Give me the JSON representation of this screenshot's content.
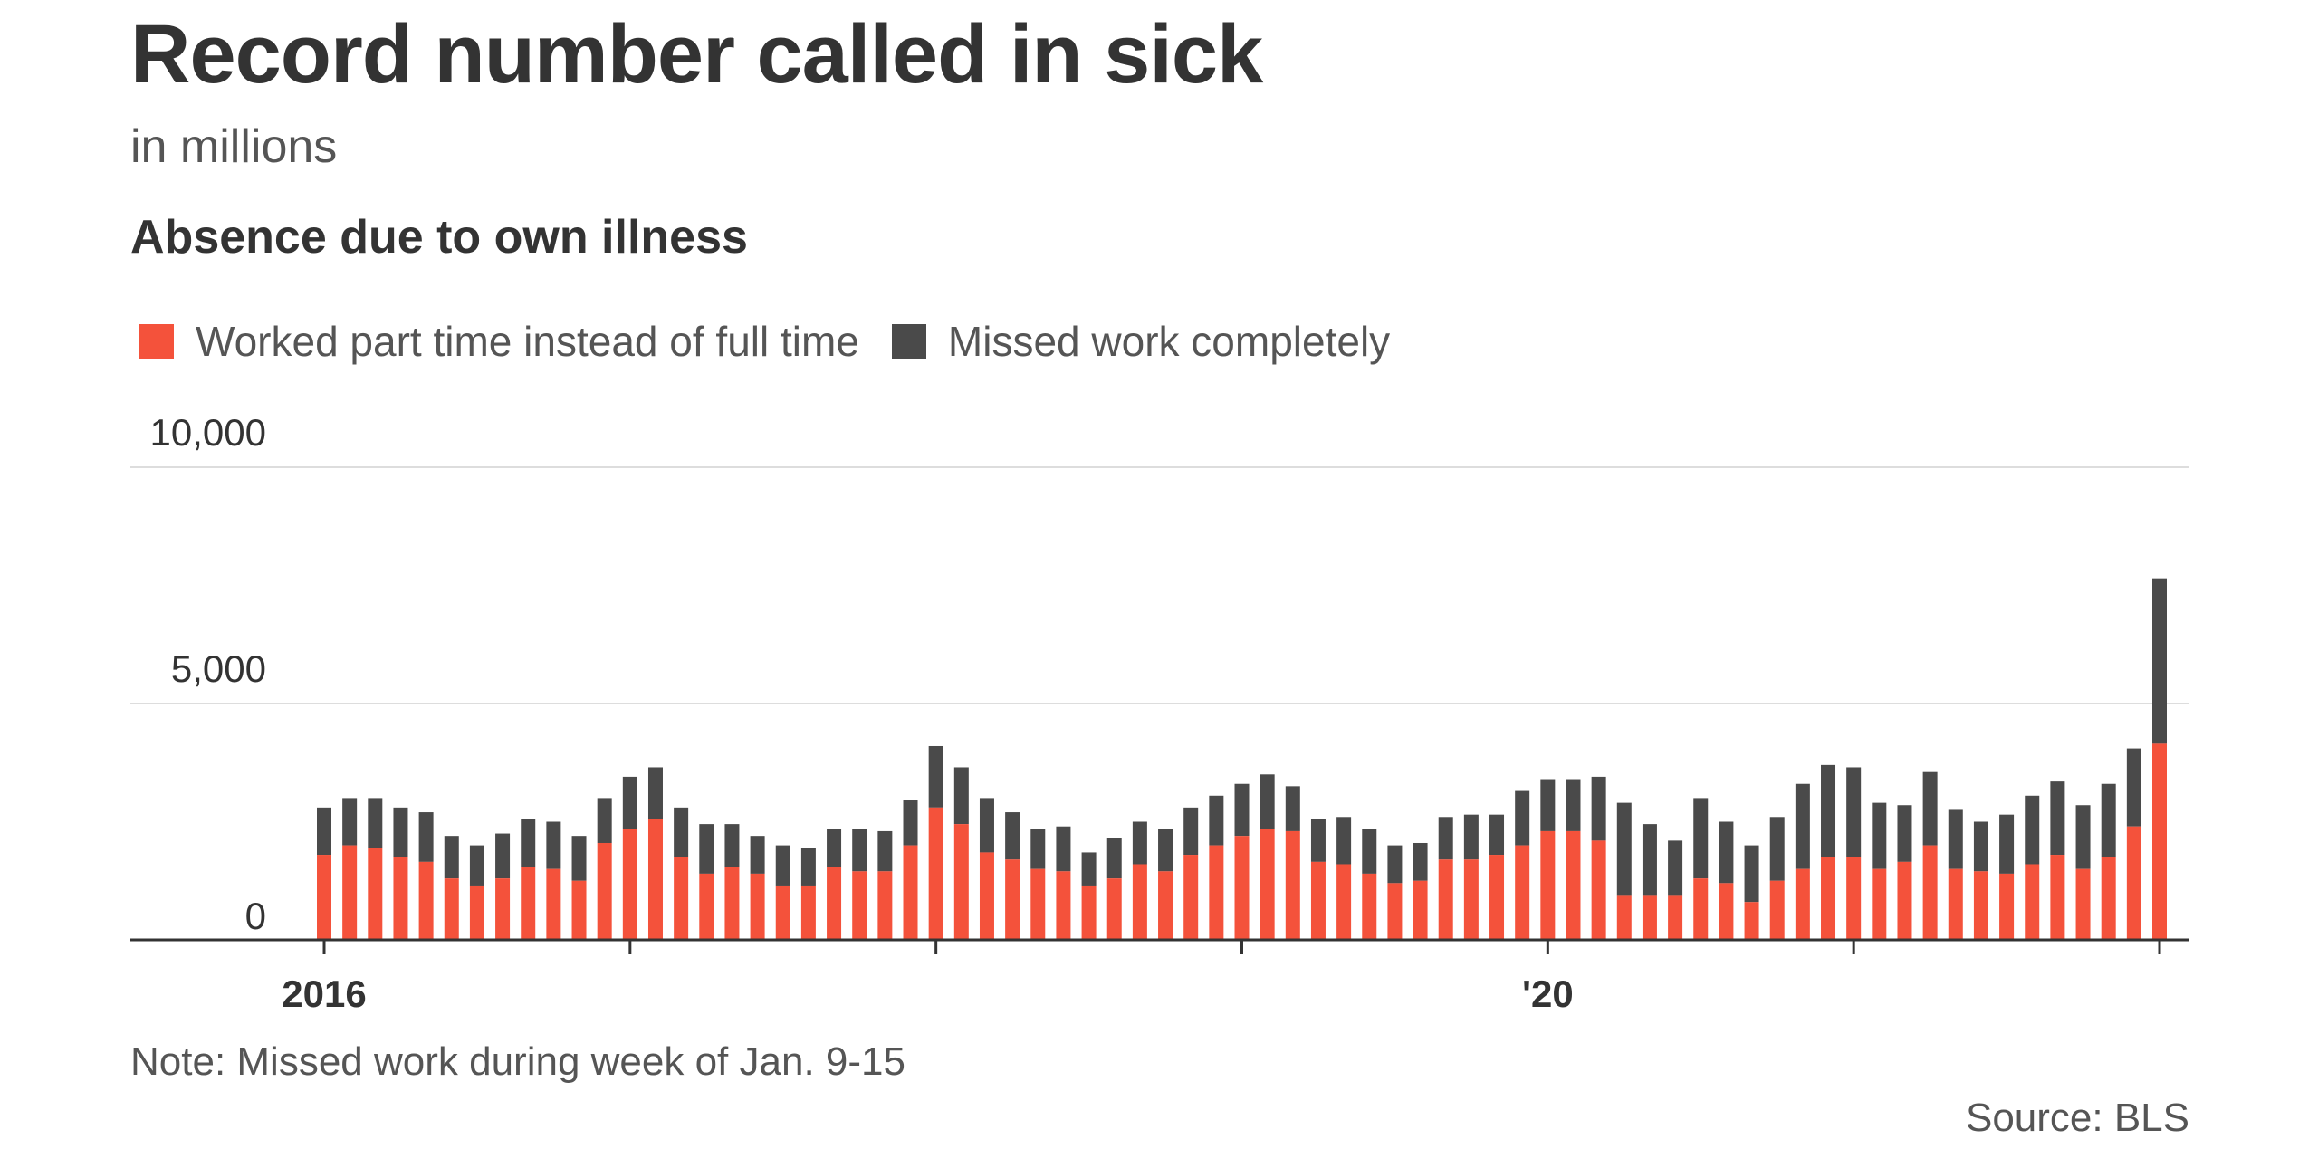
{
  "header": {
    "title": "Record number called in sick",
    "subtitle": "in millions",
    "chart_heading": "Absence due to own illness"
  },
  "legend": {
    "items": [
      {
        "label": "Worked part time instead of full time",
        "color": "#f4523b"
      },
      {
        "label": "Missed work completely",
        "color": "#4a4a4a"
      }
    ]
  },
  "footer": {
    "note": "Note: Missed work during week of Jan. 9-15",
    "source": "Source: BLS"
  },
  "chart_data": {
    "type": "bar",
    "stacked": true,
    "title": "Absence due to own illness",
    "ylim": [
      0,
      10000
    ],
    "yticks": [
      0,
      5000,
      10000
    ],
    "ytick_labels": [
      "0",
      "5,000",
      "10,000"
    ],
    "xtick_labels": [
      {
        "label": "2016",
        "index": 0
      },
      {
        "label": "'20",
        "index": 48
      }
    ],
    "gridlines": true,
    "colors": {
      "part_time": "#f4523b",
      "missed": "#4a4a4a",
      "axis": "#333333",
      "grid": "#dddddd"
    },
    "series": [
      {
        "name": "Worked part time instead of full time",
        "values": [
          1800,
          2000,
          1950,
          1750,
          1650,
          1300,
          1150,
          1300,
          1550,
          1500,
          1250,
          2050,
          2350,
          2550,
          1750,
          1400,
          1550,
          1400,
          1150,
          1150,
          1550,
          1450,
          1450,
          2000,
          2800,
          2450,
          1850,
          1700,
          1500,
          1450,
          1150,
          1300,
          1600,
          1450,
          1800,
          2000,
          2200,
          2350,
          2300,
          1650,
          1600,
          1400,
          1200,
          1250,
          1700,
          1700,
          1800,
          2000,
          2300,
          2300,
          2100,
          950,
          950,
          950,
          1300,
          1200,
          800,
          1250,
          1500,
          1750,
          1750,
          1500,
          1650,
          2000,
          1500,
          1450,
          1400,
          1600,
          1800,
          1500,
          1750,
          2400,
          4150
        ]
      },
      {
        "name": "Missed work completely",
        "values": [
          1000,
          1000,
          1050,
          1050,
          1050,
          900,
          850,
          950,
          1000,
          1000,
          950,
          950,
          1100,
          1100,
          1050,
          1050,
          900,
          800,
          850,
          800,
          800,
          900,
          850,
          950,
          1300,
          1200,
          1150,
          1000,
          850,
          950,
          700,
          850,
          900,
          900,
          1000,
          1050,
          1100,
          1150,
          950,
          900,
          1000,
          950,
          800,
          800,
          900,
          950,
          850,
          1150,
          1100,
          1100,
          1350,
          1950,
          1500,
          1150,
          1700,
          1300,
          1200,
          1350,
          1800,
          1950,
          1900,
          1400,
          1200,
          1550,
          1250,
          1050,
          1250,
          1450,
          1550,
          1350,
          1550,
          1650,
          3500
        ]
      }
    ]
  }
}
